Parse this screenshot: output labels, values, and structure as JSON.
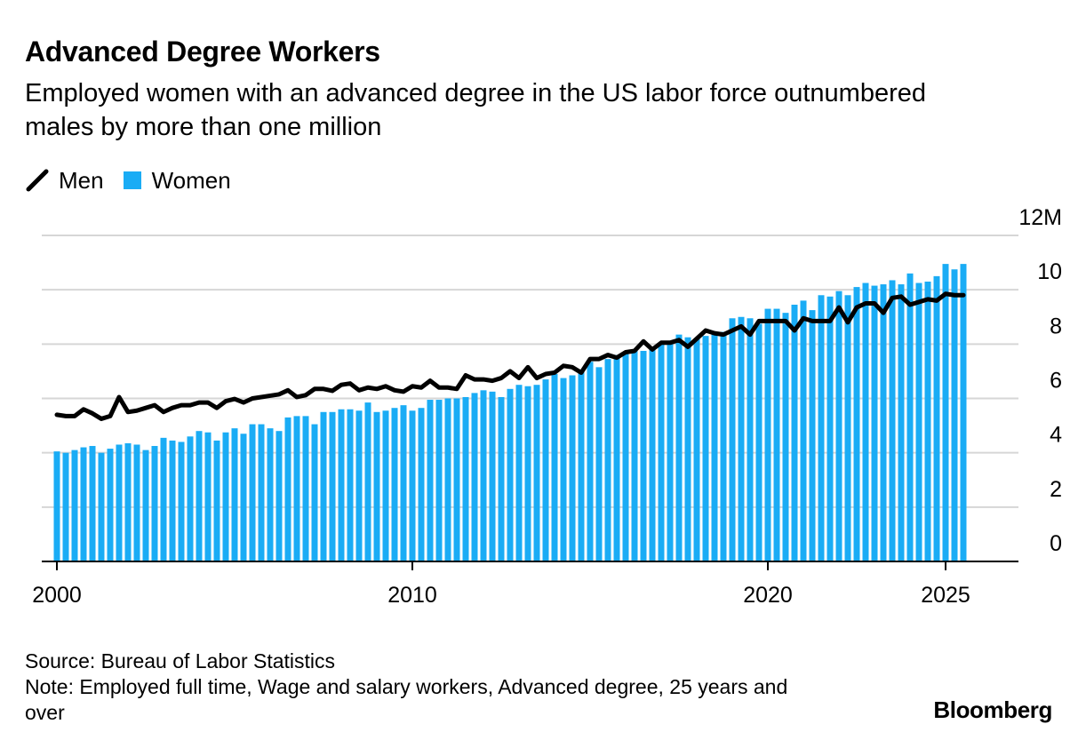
{
  "header": {
    "title": "Advanced Degree Workers",
    "subtitle": "Employed women with an advanced degree in the US labor force outnumbered males by more than one million"
  },
  "legend": {
    "men_label": "Men",
    "women_label": "Women"
  },
  "colors": {
    "men": "#000000",
    "women": "#1aacf5",
    "grid": "#d6d6d6",
    "axis": "#000000"
  },
  "footer": {
    "source": "Source: Bureau of Labor Statistics",
    "note": "Note: Employed full time, Wage and salary workers, Advanced degree, 25 years and over"
  },
  "brand": "Bloomberg",
  "chart_data": {
    "type": "bar",
    "frequency": "quarterly",
    "start": "2000-Q1",
    "x_ticks": [
      "2000",
      "2010",
      "2020",
      "2025"
    ],
    "y_ticks": [
      "0",
      "2",
      "4",
      "6",
      "8",
      "10",
      "12M"
    ],
    "ylim": [
      0,
      12
    ],
    "grid": true,
    "y_axis_side": "right",
    "legend_position": "top-left",
    "series": [
      {
        "name": "Women",
        "type": "bar",
        "values": [
          4.05,
          4.0,
          4.1,
          4.2,
          4.25,
          4.0,
          4.15,
          4.3,
          4.35,
          4.3,
          4.1,
          4.25,
          4.55,
          4.45,
          4.4,
          4.6,
          4.8,
          4.75,
          4.45,
          4.75,
          4.9,
          4.7,
          5.05,
          5.05,
          4.9,
          4.8,
          5.3,
          5.35,
          5.35,
          5.05,
          5.5,
          5.5,
          5.6,
          5.6,
          5.55,
          5.85,
          5.5,
          5.55,
          5.65,
          5.75,
          5.55,
          5.65,
          5.95,
          5.95,
          6.0,
          6.0,
          6.05,
          6.2,
          6.3,
          6.25,
          6.05,
          6.35,
          6.5,
          6.45,
          6.5,
          6.7,
          6.9,
          6.75,
          6.85,
          7.05,
          7.35,
          7.15,
          7.45,
          7.6,
          7.65,
          7.75,
          7.75,
          7.9,
          8.05,
          8.1,
          8.35,
          8.25,
          8.2,
          8.3,
          8.45,
          8.45,
          8.95,
          9.0,
          8.95,
          8.75,
          9.3,
          9.3,
          9.15,
          9.45,
          9.6,
          9.25,
          9.8,
          9.75,
          9.95,
          9.8,
          10.1,
          10.25,
          10.15,
          10.2,
          10.35,
          10.2,
          10.6,
          10.25,
          10.3,
          10.5,
          10.95,
          10.75,
          10.95
        ]
      },
      {
        "name": "Men",
        "type": "line",
        "values": [
          5.4,
          5.35,
          5.35,
          5.6,
          5.45,
          5.25,
          5.35,
          6.05,
          5.5,
          5.55,
          5.65,
          5.75,
          5.5,
          5.65,
          5.75,
          5.75,
          5.85,
          5.85,
          5.65,
          5.9,
          5.98,
          5.85,
          6.0,
          6.05,
          6.1,
          6.15,
          6.3,
          6.05,
          6.12,
          6.35,
          6.35,
          6.28,
          6.5,
          6.55,
          6.3,
          6.4,
          6.35,
          6.45,
          6.3,
          6.25,
          6.45,
          6.4,
          6.65,
          6.4,
          6.4,
          6.35,
          6.85,
          6.7,
          6.7,
          6.65,
          6.75,
          7.0,
          6.75,
          7.15,
          6.75,
          6.9,
          6.95,
          7.2,
          7.15,
          6.95,
          7.45,
          7.45,
          7.6,
          7.5,
          7.7,
          7.75,
          8.1,
          7.8,
          8.05,
          8.05,
          8.15,
          7.9,
          8.2,
          8.5,
          8.4,
          8.35,
          8.5,
          8.65,
          8.35,
          8.85,
          8.85,
          8.85,
          8.85,
          8.5,
          8.95,
          8.85,
          8.85,
          8.85,
          9.35,
          8.8,
          9.35,
          9.5,
          9.5,
          9.15,
          9.7,
          9.75,
          9.45,
          9.55,
          9.65,
          9.6,
          9.85,
          9.8,
          9.8
        ]
      }
    ]
  }
}
